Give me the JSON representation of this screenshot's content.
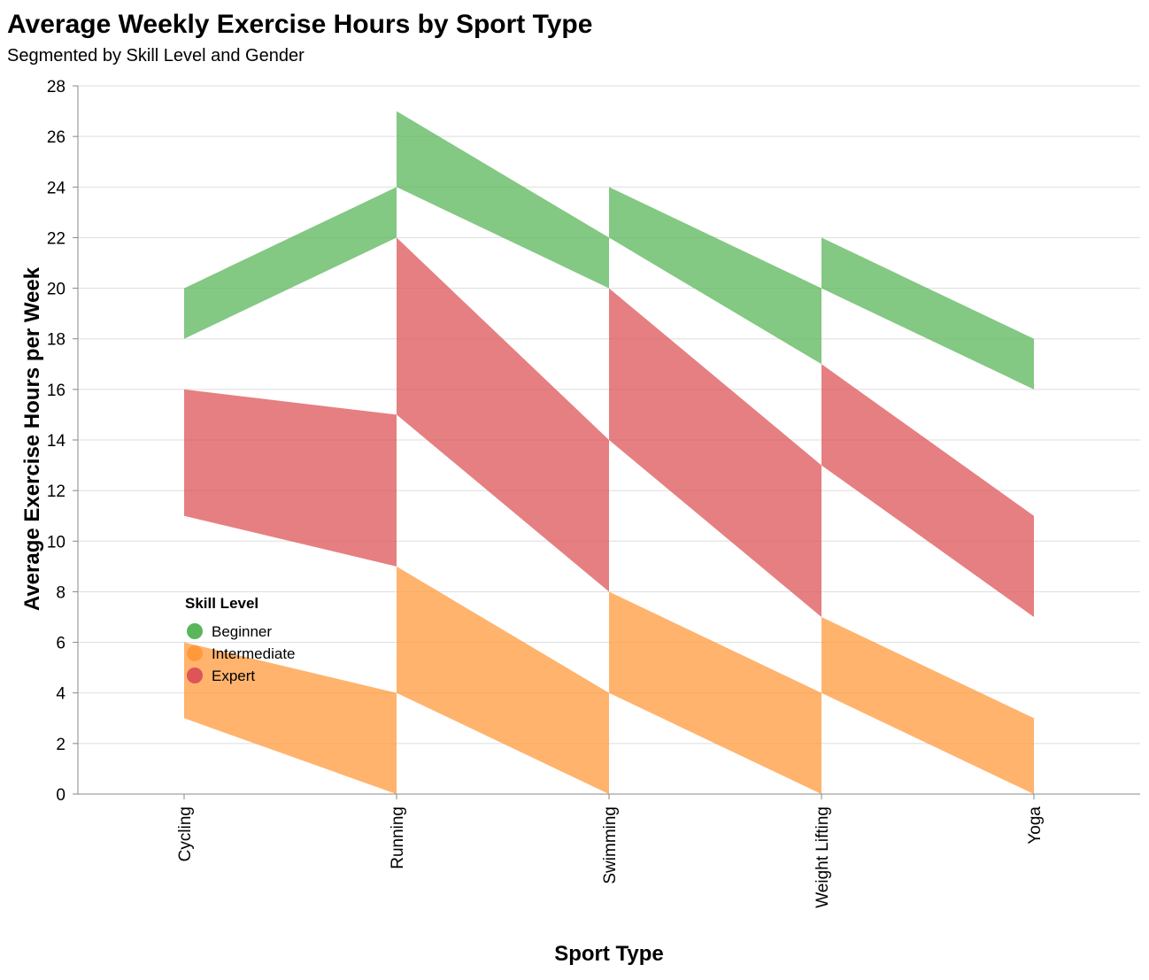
{
  "chart_data": {
    "type": "area",
    "title": "Average Weekly Exercise Hours by Sport Type",
    "subtitle": "Segmented by Skill Level and Gender",
    "xlabel": "Sport Type",
    "ylabel": "Average Exercise Hours per Week",
    "categories": [
      "Cycling",
      "Running",
      "Swimming",
      "Weight Lifting",
      "Yoga"
    ],
    "ylim": [
      0,
      28
    ],
    "yticks": [
      0,
      2,
      4,
      6,
      8,
      10,
      12,
      14,
      16,
      18,
      20,
      22,
      24,
      26,
      28
    ],
    "grid": true,
    "legend": {
      "title": "Skill Level",
      "position": "inside-bottom-left",
      "entries": [
        "Beginner",
        "Intermediate",
        "Expert"
      ]
    },
    "colors": {
      "Beginner": "#5ab65a",
      "Intermediate": "#ff9a3c",
      "Expert": "#de5457"
    },
    "series": [
      {
        "name": "Intermediate",
        "segments": [
          {
            "x": [
              "Cycling",
              "Running"
            ],
            "y0": [
              3,
              0
            ],
            "y1": [
              6,
              4
            ]
          },
          {
            "x": [
              "Running",
              "Swimming"
            ],
            "y0": [
              4,
              0
            ],
            "y1": [
              9,
              4
            ]
          },
          {
            "x": [
              "Swimming",
              "Weight Lifting"
            ],
            "y0": [
              4,
              0
            ],
            "y1": [
              8,
              4
            ]
          },
          {
            "x": [
              "Weight Lifting",
              "Yoga"
            ],
            "y0": [
              4,
              0
            ],
            "y1": [
              7,
              3
            ]
          }
        ]
      },
      {
        "name": "Expert",
        "segments": [
          {
            "x": [
              "Cycling",
              "Running"
            ],
            "y0": [
              11,
              9
            ],
            "y1": [
              16,
              15
            ]
          },
          {
            "x": [
              "Running",
              "Swimming"
            ],
            "y0": [
              15,
              8
            ],
            "y1": [
              22,
              14
            ]
          },
          {
            "x": [
              "Swimming",
              "Weight Lifting"
            ],
            "y0": [
              14,
              7
            ],
            "y1": [
              20,
              13
            ]
          },
          {
            "x": [
              "Weight Lifting",
              "Yoga"
            ],
            "y0": [
              13,
              7
            ],
            "y1": [
              17,
              11
            ]
          }
        ]
      },
      {
        "name": "Beginner",
        "segments": [
          {
            "x": [
              "Cycling",
              "Running"
            ],
            "y0": [
              18,
              22
            ],
            "y1": [
              20,
              24
            ]
          },
          {
            "x": [
              "Running",
              "Swimming"
            ],
            "y0": [
              24,
              20
            ],
            "y1": [
              27,
              22
            ]
          },
          {
            "x": [
              "Swimming",
              "Weight Lifting"
            ],
            "y0": [
              22,
              17
            ],
            "y1": [
              24,
              20
            ]
          },
          {
            "x": [
              "Weight Lifting",
              "Yoga"
            ],
            "y0": [
              20,
              16
            ],
            "y1": [
              22,
              18
            ]
          }
        ]
      }
    ]
  }
}
